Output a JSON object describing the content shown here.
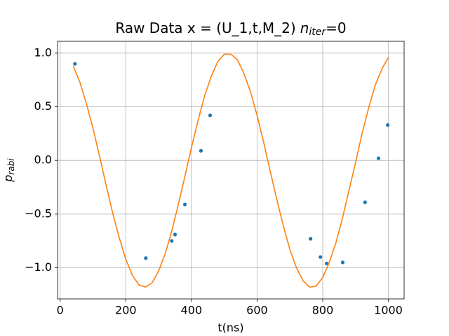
{
  "chart_data": {
    "type": "scatter",
    "title": "Raw Data x = (U_1,t,M_2)",
    "title_var": "n",
    "title_sub": "iter",
    "title_suffix": "=0",
    "xlabel": "t(ns)",
    "ylabel_var": "p",
    "ylabel_sub": "rabi",
    "xlim": [
      -8,
      1048
    ],
    "ylim": [
      -1.29,
      1.11
    ],
    "xticks": [
      0,
      200,
      400,
      600,
      800,
      1000
    ],
    "yticks": [
      {
        "value": 1.0,
        "label": "1.0"
      },
      {
        "value": 0.5,
        "label": "0.5"
      },
      {
        "value": 0.0,
        "label": "0.0"
      },
      {
        "value": -0.5,
        "label": "−0.5"
      },
      {
        "value": -1.0,
        "label": "−1.0"
      }
    ],
    "grid": true,
    "series": [
      {
        "type": "scatter",
        "color": "#1f77b4",
        "x": [
          45,
          261,
          340,
          350,
          380,
          429,
          457,
          763,
          793,
          812,
          861,
          929,
          970,
          998
        ],
        "values": [
          0.9,
          -0.91,
          -0.75,
          -0.69,
          -0.41,
          0.09,
          0.42,
          -0.73,
          -0.9,
          -0.96,
          -0.95,
          -0.39,
          0.02,
          0.33
        ]
      },
      {
        "type": "line",
        "color": "#ff7f0e",
        "x": [
          40,
          60,
          80,
          100,
          120,
          140,
          160,
          180,
          200,
          220,
          240,
          260,
          280,
          300,
          320,
          340,
          360,
          380,
          400,
          420,
          440,
          460,
          480,
          500,
          520,
          540,
          560,
          580,
          600,
          620,
          640,
          660,
          680,
          700,
          720,
          740,
          760,
          780,
          800,
          820,
          840,
          860,
          880,
          900,
          920,
          940,
          960,
          980,
          1000
        ],
        "values": [
          0.88,
          0.73,
          0.53,
          0.3,
          0.04,
          -0.23,
          -0.49,
          -0.72,
          -0.92,
          -1.07,
          -1.16,
          -1.18,
          -1.14,
          -1.03,
          -0.87,
          -0.66,
          -0.41,
          -0.15,
          0.12,
          0.37,
          0.6,
          0.78,
          0.92,
          0.99,
          0.99,
          0.94,
          0.81,
          0.64,
          0.42,
          0.17,
          -0.1,
          -0.36,
          -0.61,
          -0.83,
          -1.0,
          -1.12,
          -1.18,
          -1.17,
          -1.09,
          -0.95,
          -0.77,
          -0.54,
          -0.28,
          -0.02,
          0.25,
          0.49,
          0.7,
          0.85,
          0.96
        ]
      }
    ]
  }
}
